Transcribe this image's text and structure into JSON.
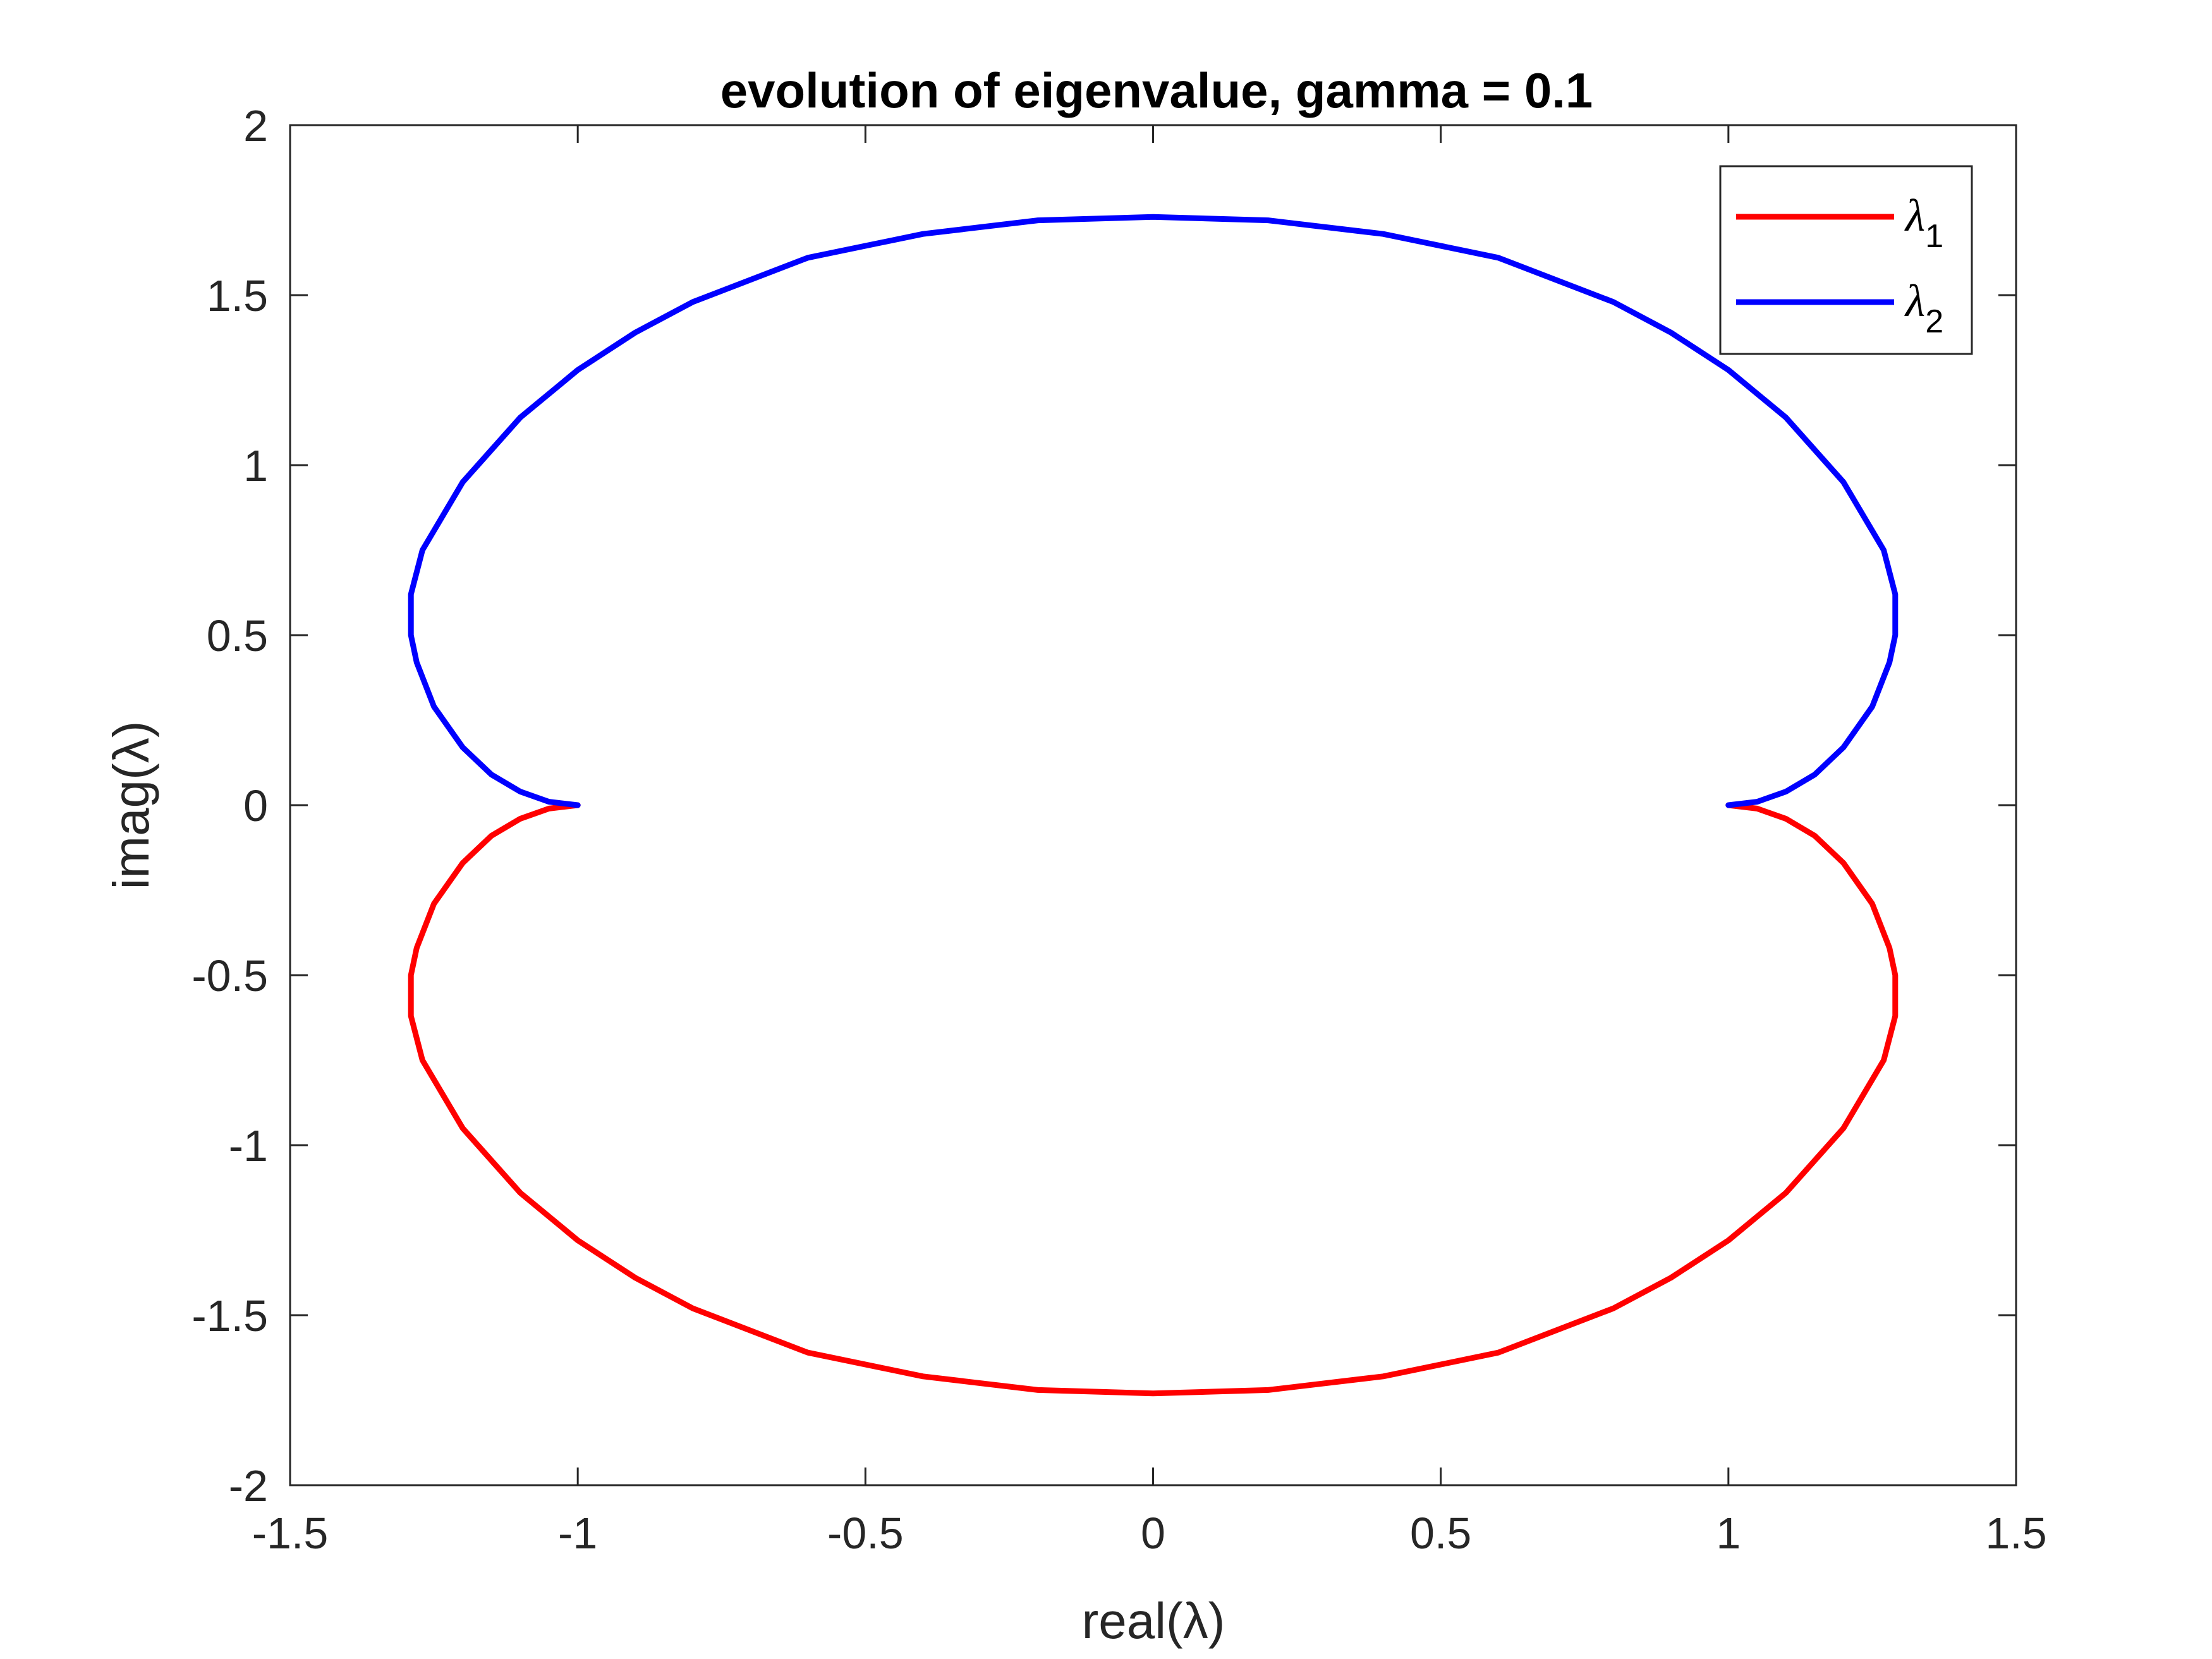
{
  "chart_data": {
    "type": "line",
    "title": "evolution of eigenvalue, gamma = 0.1",
    "xlabel": "real(λ)",
    "ylabel": "imag(λ)",
    "xlim": [
      -1.5,
      1.5
    ],
    "ylim": [
      -2,
      2
    ],
    "xticks": [
      -1.5,
      -1,
      -0.5,
      0,
      0.5,
      1,
      1.5
    ],
    "yticks": [
      -2,
      -1.5,
      -1,
      -0.5,
      0,
      0.5,
      1,
      1.5,
      2
    ],
    "xtick_labels": [
      "-1.5",
      "-1",
      "-0.5",
      "0",
      "0.5",
      "1",
      "1.5"
    ],
    "ytick_labels": [
      "-2",
      "-1.5",
      "-1",
      "-0.5",
      "0",
      "0.5",
      "1",
      "1.5",
      "2"
    ],
    "grid": false,
    "legend_position": "top-right",
    "series": [
      {
        "name": "λ",
        "subscript": "1",
        "color": "#ff0000",
        "points": [
          [
            -1.0,
            0.0
          ],
          [
            -1.05,
            -0.01
          ],
          [
            -1.1,
            -0.04
          ],
          [
            -1.15,
            -0.09
          ],
          [
            -1.2,
            -0.17
          ],
          [
            -1.25,
            -0.29
          ],
          [
            -1.28,
            -0.42
          ],
          [
            -1.29,
            -0.5
          ],
          [
            -1.29,
            -0.62
          ],
          [
            -1.27,
            -0.75
          ],
          [
            -1.2,
            -0.95
          ],
          [
            -1.1,
            -1.14
          ],
          [
            -1.0,
            -1.28
          ],
          [
            -0.9,
            -1.39
          ],
          [
            -0.8,
            -1.48
          ],
          [
            -0.6,
            -1.61
          ],
          [
            -0.4,
            -1.68
          ],
          [
            -0.2,
            -1.72
          ],
          [
            0.0,
            -1.73
          ],
          [
            0.2,
            -1.72
          ],
          [
            0.4,
            -1.68
          ],
          [
            0.6,
            -1.61
          ],
          [
            0.8,
            -1.48
          ],
          [
            0.9,
            -1.39
          ],
          [
            1.0,
            -1.28
          ],
          [
            1.1,
            -1.14
          ],
          [
            1.2,
            -0.95
          ],
          [
            1.27,
            -0.75
          ],
          [
            1.29,
            -0.62
          ],
          [
            1.29,
            -0.5
          ],
          [
            1.28,
            -0.42
          ],
          [
            1.25,
            -0.29
          ],
          [
            1.2,
            -0.17
          ],
          [
            1.15,
            -0.09
          ],
          [
            1.1,
            -0.04
          ],
          [
            1.05,
            -0.01
          ],
          [
            1.0,
            0.0
          ]
        ]
      },
      {
        "name": "λ",
        "subscript": "2",
        "color": "#0000ff",
        "points": [
          [
            -1.0,
            0.0
          ],
          [
            -1.05,
            0.01
          ],
          [
            -1.1,
            0.04
          ],
          [
            -1.15,
            0.09
          ],
          [
            -1.2,
            0.17
          ],
          [
            -1.25,
            0.29
          ],
          [
            -1.28,
            0.42
          ],
          [
            -1.29,
            0.5
          ],
          [
            -1.29,
            0.62
          ],
          [
            -1.27,
            0.75
          ],
          [
            -1.2,
            0.95
          ],
          [
            -1.1,
            1.14
          ],
          [
            -1.0,
            1.28
          ],
          [
            -0.9,
            1.39
          ],
          [
            -0.8,
            1.48
          ],
          [
            -0.6,
            1.61
          ],
          [
            -0.4,
            1.68
          ],
          [
            -0.2,
            1.72
          ],
          [
            0.0,
            1.73
          ],
          [
            0.2,
            1.72
          ],
          [
            0.4,
            1.68
          ],
          [
            0.6,
            1.61
          ],
          [
            0.8,
            1.48
          ],
          [
            0.9,
            1.39
          ],
          [
            1.0,
            1.28
          ],
          [
            1.1,
            1.14
          ],
          [
            1.2,
            0.95
          ],
          [
            1.27,
            0.75
          ],
          [
            1.29,
            0.62
          ],
          [
            1.29,
            0.5
          ],
          [
            1.28,
            0.42
          ],
          [
            1.25,
            0.29
          ],
          [
            1.2,
            0.17
          ],
          [
            1.15,
            0.09
          ],
          [
            1.1,
            0.04
          ],
          [
            1.05,
            0.01
          ],
          [
            1.0,
            0.0
          ]
        ]
      }
    ]
  }
}
